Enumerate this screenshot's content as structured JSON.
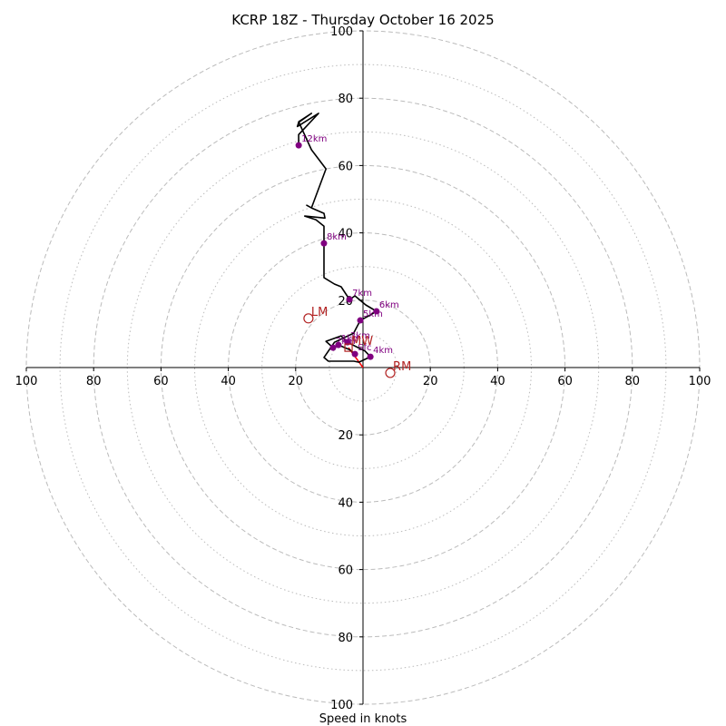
{
  "chart_data": {
    "type": "line",
    "subtype": "hodograph",
    "title": "KCRP 18Z - Thursday October 16 2025",
    "xlabel": "Speed in knots",
    "ylabel": "",
    "range_max": 100,
    "ring_major_step": 20,
    "ring_minor_step": 10,
    "x_tick_labels": [
      "100",
      "80",
      "60",
      "40",
      "20",
      "",
      "20",
      "40",
      "60",
      "80",
      "100"
    ],
    "y_tick_labels": [
      "100",
      "80",
      "60",
      "40",
      "20",
      "",
      "20",
      "40",
      "60",
      "80",
      "100"
    ],
    "tick_values": [
      -100,
      -80,
      -60,
      -40,
      -20,
      0,
      20,
      40,
      60,
      80,
      100
    ],
    "grid": true,
    "colors": {
      "trace": "#000000",
      "height_marker": "#800080",
      "motion": "#b22222",
      "shear_vector": "#ff0000",
      "grid": "#bbbbbb"
    },
    "trace": {
      "name": "wind profile",
      "u": [
        -2.4,
        -4.0,
        -7.3,
        -8.9,
        -11.0,
        -6.5,
        -4.6,
        -1.0,
        0.6,
        2.2,
        -1.2,
        -2.7,
        -10.3,
        -11.6,
        -8.5,
        -2.8,
        -0.8,
        2.2,
        4.0,
        0.8,
        -2.4,
        -4.0,
        -6.5,
        -8.5,
        -11.6,
        -11.6,
        -11.6,
        -11.6,
        -14.0,
        -17.3,
        -11.3,
        -11.6,
        -15.3,
        -16.7,
        -15.3,
        -11.0,
        -15.3,
        -19.1,
        -15.3,
        -19.1,
        -19.5,
        -13.2,
        -19.1,
        -19.1
      ],
      "v": [
        4.0,
        5.3,
        6.7,
        5.9,
        7.8,
        9.4,
        7.5,
        5.7,
        4.9,
        3.2,
        1.6,
        1.9,
        1.9,
        3.0,
        7.5,
        10.2,
        14.0,
        15.6,
        16.7,
        18.6,
        21.3,
        20.2,
        24.0,
        24.8,
        26.7,
        31.8,
        36.9,
        42.0,
        43.9,
        45.0,
        44.4,
        45.8,
        47.4,
        48.2,
        47.4,
        59.0,
        64.7,
        73.0,
        75.5,
        72.8,
        71.6,
        75.5,
        69.2,
        66.0
      ]
    },
    "height_markers": [
      {
        "label": "Sfc",
        "u": -2.4,
        "v": 4.0
      },
      {
        "label": "1km",
        "u": -7.3,
        "v": 6.7
      },
      {
        "label": "2km",
        "u": -8.9,
        "v": 5.9
      },
      {
        "label": "3km",
        "u": -4.6,
        "v": 7.5
      },
      {
        "label": "4km",
        "u": 2.2,
        "v": 3.2
      },
      {
        "label": "5km",
        "u": -0.8,
        "v": 14.0
      },
      {
        "label": "6km",
        "u": 4.0,
        "v": 16.7
      },
      {
        "label": "7km",
        "u": -4.0,
        "v": 20.2
      },
      {
        "label": "8km",
        "u": -11.6,
        "v": 36.9
      },
      {
        "label": "12km",
        "u": -19.1,
        "v": 66.0
      }
    ],
    "storm_motions": [
      {
        "label": "RM",
        "u": 8.1,
        "v": -1.6,
        "marker": "circle"
      },
      {
        "label": "LM",
        "u": -16.2,
        "v": 14.6,
        "marker": "circle"
      },
      {
        "label": "MW",
        "u": -4.3,
        "v": 5.9,
        "marker": "square"
      }
    ],
    "shear_vector": {
      "from": {
        "u": 0,
        "v": 0
      },
      "to": {
        "u": -4.3,
        "v": 5.9
      }
    }
  }
}
